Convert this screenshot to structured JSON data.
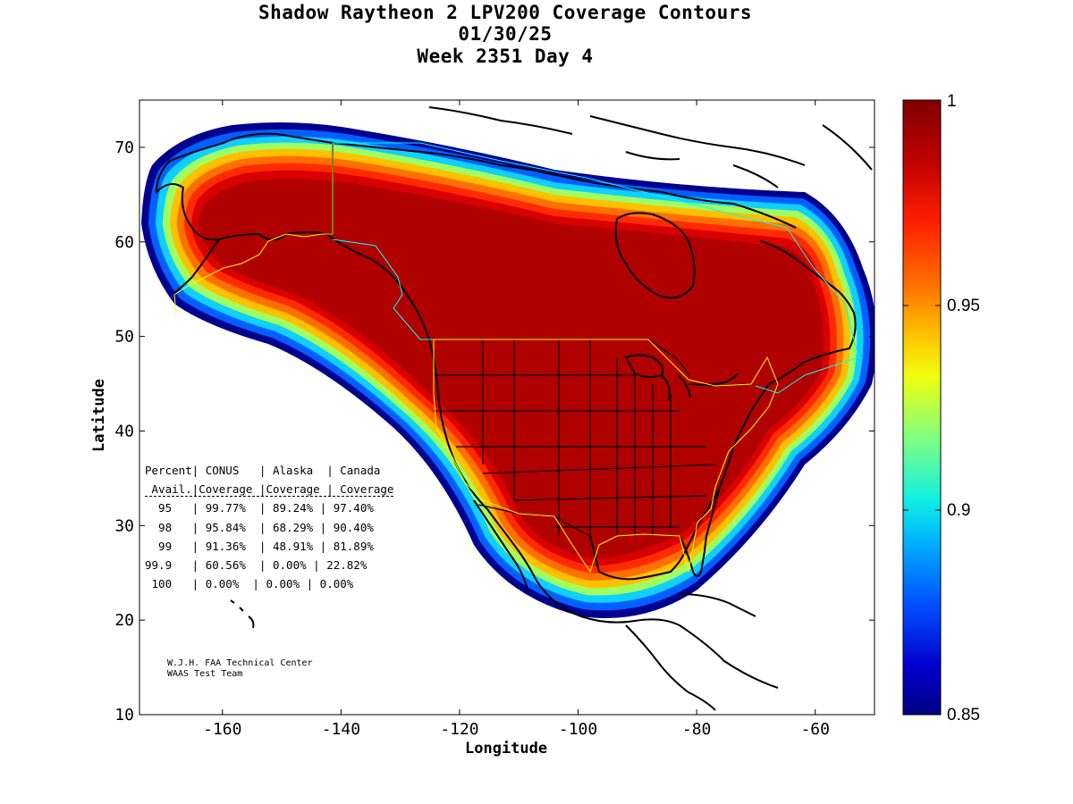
{
  "title": {
    "line1": "Shadow Raytheon 2 LPV200 Coverage Contours",
    "line2": "01/30/25",
    "line3": "Week 2351 Day 4"
  },
  "axes": {
    "xlabel": "Longitude",
    "ylabel": "Latitude",
    "xlim": [
      -174,
      -50
    ],
    "ylim": [
      10,
      75
    ],
    "xticks": [
      -160,
      -140,
      -120,
      -100,
      -80,
      -60
    ],
    "yticks": [
      10,
      20,
      30,
      40,
      50,
      60,
      70
    ]
  },
  "colorbar": {
    "min": 0.85,
    "max": 1,
    "labels": [
      "1",
      "0.95",
      "0.9",
      "0.85"
    ],
    "colors": [
      "#7f0000",
      "#c80000",
      "#ff3000",
      "#ff8000",
      "#ffd000",
      "#c0ff40",
      "#40ffc0",
      "#00c0ff",
      "#0060ff",
      "#0000c0",
      "#00008f"
    ]
  },
  "stats_table": {
    "header1": "Percent| CONUS   | Alaska  | Canada",
    "header2": " Avail.|Coverage |Coverage | Coverage",
    "rows": [
      "  95   | 99.77%  | 89.24% | 97.40%",
      "  98   | 95.84%  | 68.29% | 90.40%",
      "  99   | 91.36%  | 48.91% | 81.89%",
      "99.9   | 60.56%  | 0.00% | 22.82%",
      " 100   | 0.00%  | 0.00% | 0.00%"
    ]
  },
  "credit": {
    "line1": "W.J.H. FAA Technical Center",
    "line2": "WAAS Test Team"
  }
}
